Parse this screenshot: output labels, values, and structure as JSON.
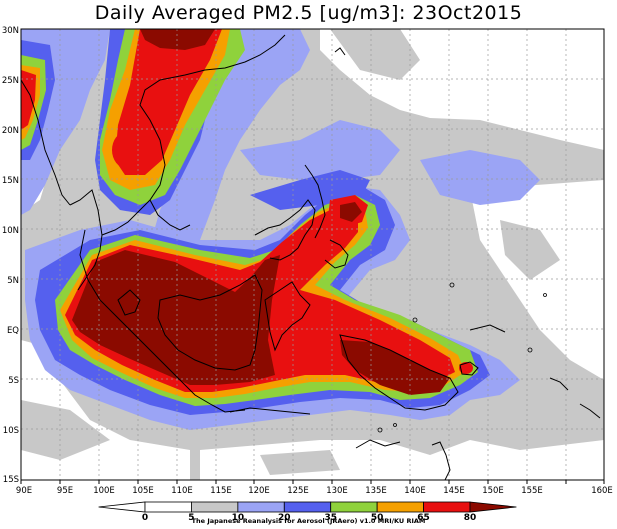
{
  "title": "Daily Averaged PM2.5 [ug/m3]: 23Oct2015",
  "credit": "The Japanese Reanalysis for Aerosol (JRAero) v1.0 MRI/KU RIAM",
  "lat_labels": [
    "30N",
    "25N",
    "20N",
    "15N",
    "10N",
    "5N",
    "EQ",
    "5S",
    "10S",
    "15S"
  ],
  "lon_labels": [
    "90E",
    "95E",
    "100E",
    "105E",
    "110E",
    "115E",
    "120E",
    "125E",
    "130E",
    "135E",
    "140E",
    "145E",
    "150E",
    "155E",
    "160E"
  ],
  "colorbar": {
    "ticks": [
      "0",
      "5",
      "10",
      "20",
      "35",
      "50",
      "65",
      "80"
    ],
    "colors": [
      "#ffffff",
      "#ffffff",
      "#c8c8c8",
      "#9ba4f5",
      "#5560ee",
      "#8fd23c",
      "#f5a000",
      "#e81010",
      "#8b0a00"
    ]
  },
  "colors": {
    "gray": "#c8c8c8",
    "light_blue": "#9ba4f5",
    "blue": "#5560ee",
    "green": "#8fd23c",
    "orange": "#f5a000",
    "red": "#e81010",
    "dark_red": "#8b0a00"
  }
}
